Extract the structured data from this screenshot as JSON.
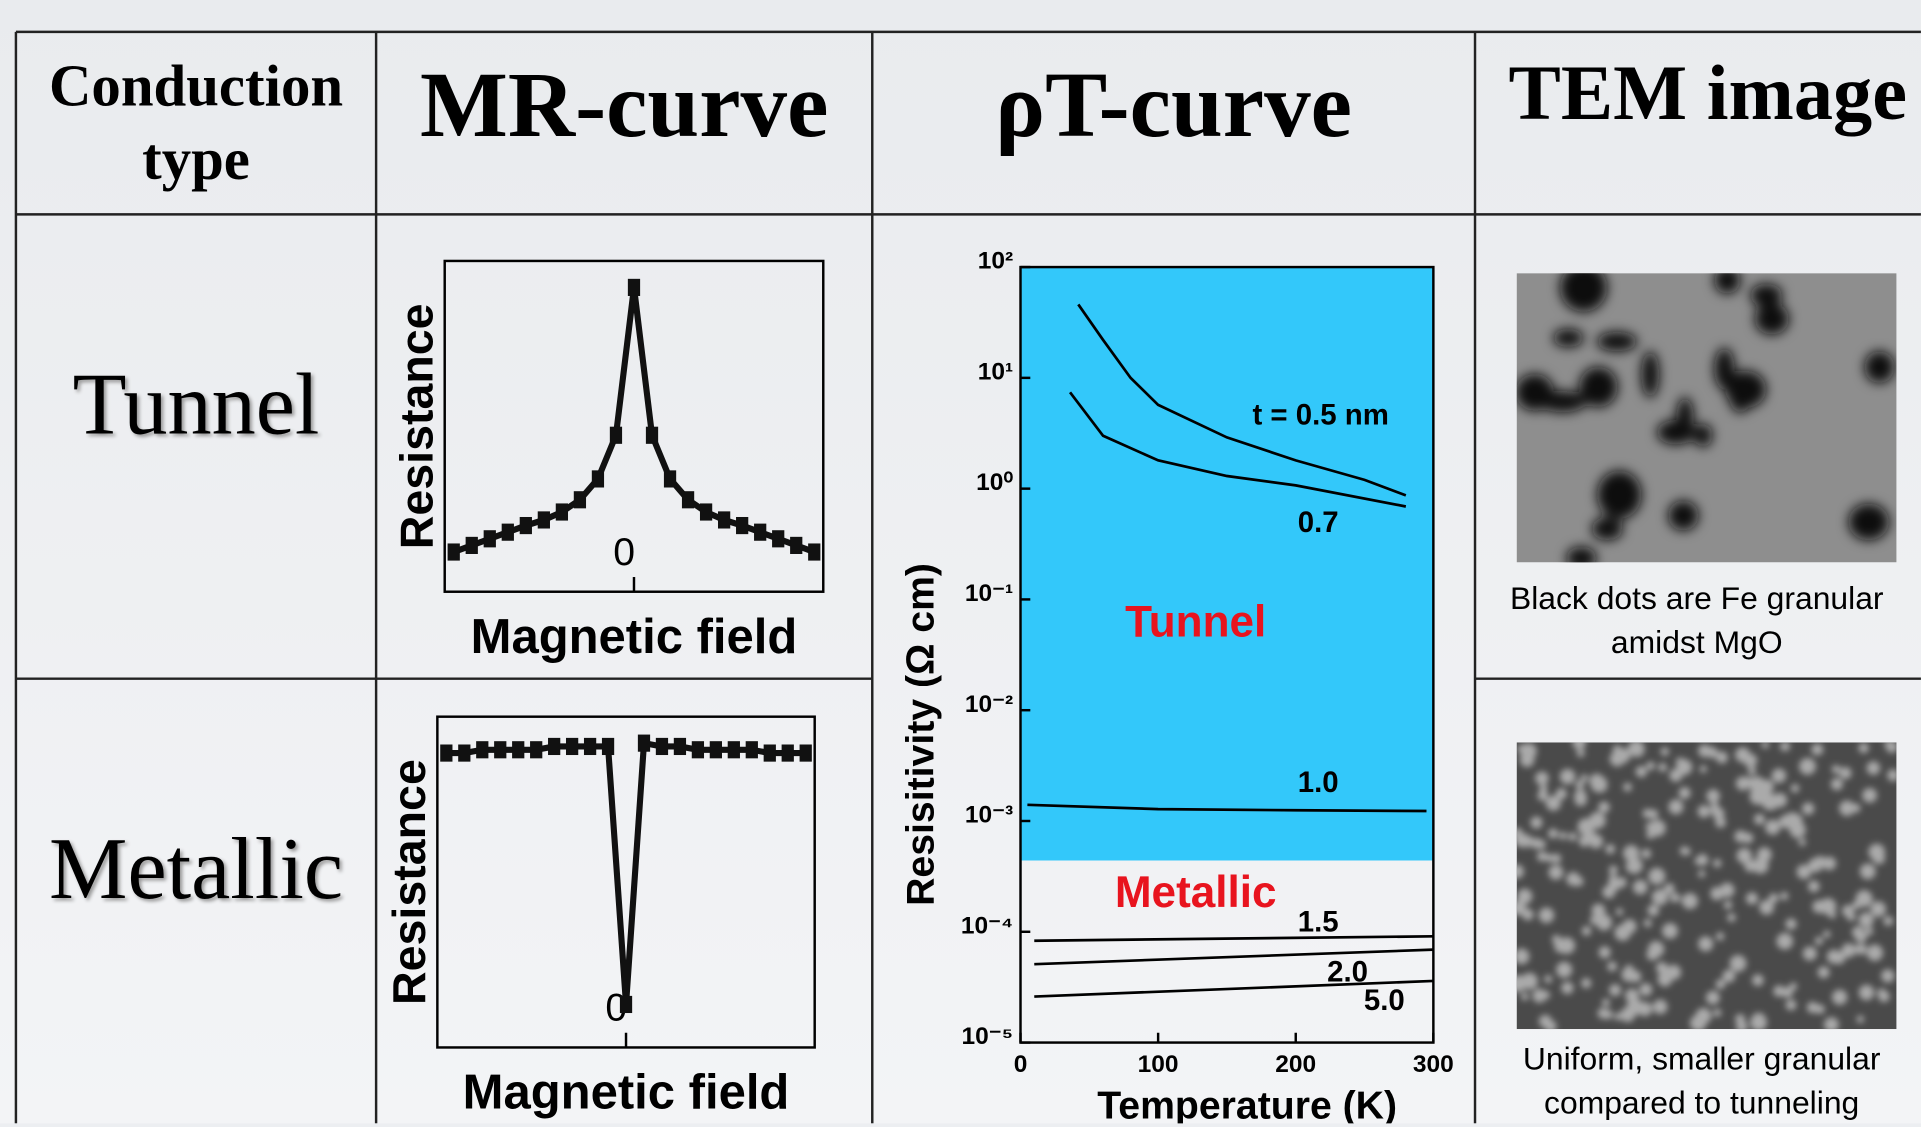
{
  "table": {
    "header": [
      "Conduction type",
      "MR-curve",
      "ρT-curve",
      "TEM image"
    ],
    "rows": [
      {
        "type": "Tunnel",
        "mr_curve": {
          "type": "line",
          "ylabel": "Resistance",
          "xlabel": "Magnetic field",
          "color": "#111111",
          "x": [
            -1.0,
            -0.9,
            -0.8,
            -0.7,
            -0.6,
            -0.5,
            -0.4,
            -0.3,
            -0.2,
            -0.1,
            0.0,
            0.1,
            0.2,
            0.3,
            0.4,
            0.5,
            0.6,
            0.7,
            0.8,
            0.9,
            1.0
          ],
          "values": [
            0.12,
            0.14,
            0.16,
            0.18,
            0.2,
            0.217,
            0.241,
            0.278,
            0.341,
            0.473,
            0.92,
            0.473,
            0.341,
            0.278,
            0.241,
            0.217,
            0.2,
            0.18,
            0.16,
            0.14,
            0.12
          ],
          "xlim": [
            -1.05,
            1.05
          ],
          "ylim": [
            0,
            1
          ],
          "xticks": [
            0
          ]
        },
        "tem_caption": "Black dots are Fe granular amidst MgO"
      },
      {
        "type": "Metallic",
        "mr_curve": {
          "type": "line",
          "ylabel": "Resistance",
          "xlabel": "Magnetic field",
          "color": "#111111",
          "x": [
            -1.0,
            -0.9,
            -0.8,
            -0.7,
            -0.6,
            -0.5,
            -0.4,
            -0.3,
            -0.2,
            -0.1,
            0.0,
            0.1,
            0.2,
            0.3,
            0.4,
            0.5,
            0.6,
            0.7,
            0.8,
            0.9,
            1.0
          ],
          "values": [
            0.89,
            0.89,
            0.9,
            0.9,
            0.9,
            0.9,
            0.91,
            0.91,
            0.91,
            0.91,
            0.13,
            0.92,
            0.91,
            0.91,
            0.9,
            0.9,
            0.9,
            0.9,
            0.89,
            0.89,
            0.89
          ],
          "xlim": [
            -1.05,
            1.05
          ],
          "ylim": [
            0,
            1
          ],
          "xticks": [
            0
          ]
        },
        "tem_caption": "Uniform, smaller granular compared to tunneling"
      }
    ],
    "rt_curve": {
      "type": "line",
      "log_y": true,
      "xlabel": "Temperature (K)",
      "ylabel": "Resisitivity (Ω cm)",
      "xlim": [
        0,
        300
      ],
      "xticks": [
        0,
        100,
        200,
        300
      ],
      "ylim": [
        1e-05,
        100
      ],
      "yticks": [
        {
          "value": 100,
          "label": "10²"
        },
        {
          "value": 10,
          "label": "10¹"
        },
        {
          "value": 1,
          "label": "10⁰"
        },
        {
          "value": 0.1,
          "label": "10⁻¹"
        },
        {
          "value": 0.01,
          "label": "10⁻²"
        },
        {
          "value": 0.001,
          "label": "10⁻³"
        },
        {
          "value": 0.0001,
          "label": "10⁻⁴"
        },
        {
          "value": 1e-05,
          "label": "10⁻⁵"
        }
      ],
      "tunnel_region": {
        "label": "Tunnel",
        "min": 0.00044,
        "color": "#33c8fa"
      },
      "metallic_label": "Metallic",
      "annotation_color": "#e8141e",
      "series": [
        {
          "name": "t = 0.5 nm",
          "color": "#000000",
          "x": [
            42,
            60,
            80,
            100,
            150,
            200,
            250,
            280
          ],
          "values": [
            46,
            22,
            10,
            5.7,
            2.9,
            1.8,
            1.2,
            0.87
          ]
        },
        {
          "name": "0.7",
          "color": "#000000",
          "x": [
            36,
            60,
            100,
            150,
            200,
            280
          ],
          "values": [
            7.4,
            3.0,
            1.8,
            1.3,
            1.07,
            0.69
          ]
        },
        {
          "name": "1.0",
          "color": "#000000",
          "x": [
            5,
            100,
            200,
            295
          ],
          "values": [
            0.0014,
            0.00128,
            0.00125,
            0.00123
          ]
        },
        {
          "name": "1.5",
          "color": "#000000",
          "x": [
            10,
            300
          ],
          "values": [
            8.3e-05,
            9.1e-05
          ]
        },
        {
          "name": "2.0",
          "color": "#000000",
          "x": [
            10,
            300
          ],
          "values": [
            5.1e-05,
            6.9e-05
          ]
        },
        {
          "name": "5.0",
          "color": "#000000",
          "x": [
            10,
            300
          ],
          "values": [
            2.6e-05,
            3.6e-05
          ]
        }
      ]
    }
  }
}
